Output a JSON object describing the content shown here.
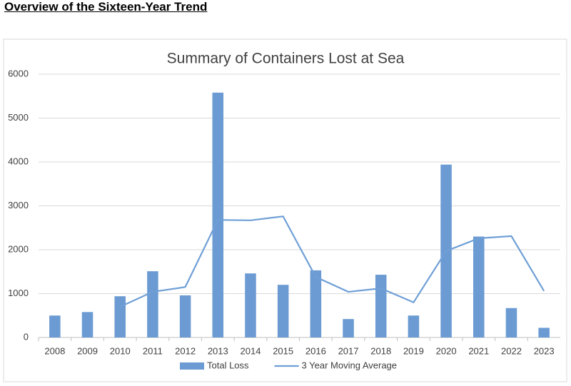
{
  "heading": "Overview of the Sixteen-Year Trend",
  "chart_data": {
    "type": "bar-line",
    "title": "Summary of Containers Lost at Sea",
    "categories": [
      "2008",
      "2009",
      "2010",
      "2011",
      "2012",
      "2013",
      "2014",
      "2015",
      "2016",
      "2017",
      "2018",
      "2019",
      "2020",
      "2021",
      "2022",
      "2023"
    ],
    "series": [
      {
        "name": "Total Loss",
        "type": "bar",
        "color": "#6b9bd2",
        "values": [
          500,
          580,
          940,
          1510,
          960,
          5580,
          1460,
          1200,
          1530,
          420,
          1430,
          500,
          3940,
          2300,
          670,
          220
        ]
      },
      {
        "name": "3 Year Moving Average",
        "type": "line",
        "color": "#6f9fd6",
        "values": [
          null,
          null,
          700,
          1040,
          1150,
          2680,
          2670,
          2760,
          1380,
          1040,
          1120,
          800,
          1970,
          2260,
          2310,
          1060
        ]
      }
    ],
    "ylim": [
      0,
      6000
    ],
    "yticks": [
      0,
      1000,
      2000,
      3000,
      4000,
      5000,
      6000
    ],
    "grid": true,
    "legend": "bottom"
  }
}
